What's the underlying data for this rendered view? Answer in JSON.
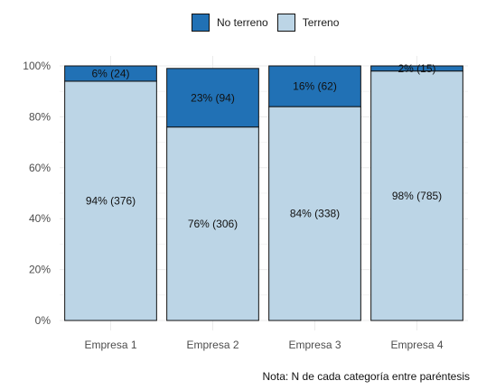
{
  "chart_data": {
    "type": "bar",
    "stacked": true,
    "orientation": "vertical",
    "categories": [
      "Empresa 1",
      "Empresa 2",
      "Empresa 3",
      "Empresa 4"
    ],
    "series": [
      {
        "name": "Terreno",
        "color": "#bcd5e6",
        "values": [
          94,
          76,
          84,
          98
        ],
        "labels": [
          "94% (376)",
          "76% (306)",
          "84% (338)",
          "98% (785)"
        ]
      },
      {
        "name": "No terreno",
        "color": "#2171b5",
        "values": [
          6,
          23,
          16,
          2
        ],
        "labels": [
          "6% (24)",
          "23% (94)",
          "16% (62)",
          "2% (15)"
        ]
      }
    ],
    "yticks": [
      "0%",
      "20%",
      "40%",
      "60%",
      "80%",
      "100%"
    ],
    "ylim": [
      0,
      100
    ],
    "legend": {
      "position": "top",
      "entries": [
        "No terreno",
        "Terreno"
      ]
    },
    "grid": true
  },
  "legend": {
    "no_terreno": "No terreno",
    "terreno": "Terreno"
  },
  "note": "Nota: N de cada categoría entre paréntesis"
}
